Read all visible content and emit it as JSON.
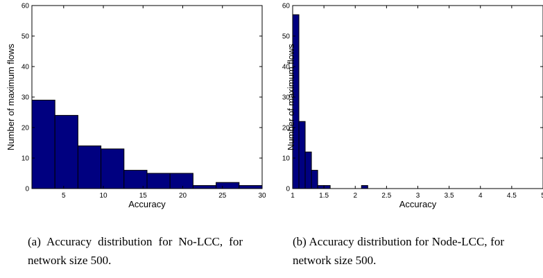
{
  "chart_data": [
    {
      "type": "bar",
      "xlabel": "Accuracy",
      "ylabel": "Number of maximum flows",
      "xlim": [
        1,
        30
      ],
      "ylim": [
        0,
        60
      ],
      "x_ticks": [
        5,
        10,
        15,
        20,
        25,
        30
      ],
      "y_ticks": [
        0,
        10,
        20,
        30,
        40,
        50,
        60
      ],
      "bins": [
        {
          "x0": 1,
          "x1": 3.9,
          "value": 29
        },
        {
          "x0": 3.9,
          "x1": 6.8,
          "value": 24
        },
        {
          "x0": 6.8,
          "x1": 9.7,
          "value": 14
        },
        {
          "x0": 9.7,
          "x1": 12.6,
          "value": 13
        },
        {
          "x0": 12.6,
          "x1": 15.5,
          "value": 6
        },
        {
          "x0": 15.5,
          "x1": 18.4,
          "value": 5
        },
        {
          "x0": 18.4,
          "x1": 21.3,
          "value": 5
        },
        {
          "x0": 21.3,
          "x1": 24.2,
          "value": 1
        },
        {
          "x0": 24.2,
          "x1": 27.1,
          "value": 2
        },
        {
          "x0": 27.1,
          "x1": 30,
          "value": 1
        }
      ],
      "color": "#000080"
    },
    {
      "type": "bar",
      "xlabel": "Accuracy",
      "ylabel": "Number of maximum flows",
      "xlim": [
        1,
        5
      ],
      "ylim": [
        0,
        60
      ],
      "x_ticks": [
        1,
        1.5,
        2,
        2.5,
        3,
        3.5,
        4,
        4.5,
        5
      ],
      "y_ticks": [
        0,
        10,
        20,
        30,
        40,
        50,
        60
      ],
      "bins": [
        {
          "x0": 1.0,
          "x1": 1.1,
          "value": 57
        },
        {
          "x0": 1.1,
          "x1": 1.2,
          "value": 22
        },
        {
          "x0": 1.2,
          "x1": 1.3,
          "value": 12
        },
        {
          "x0": 1.3,
          "x1": 1.4,
          "value": 6
        },
        {
          "x0": 1.4,
          "x1": 1.5,
          "value": 1
        },
        {
          "x0": 1.5,
          "x1": 1.6,
          "value": 1
        },
        {
          "x0": 2.1,
          "x1": 2.2,
          "value": 1
        }
      ],
      "color": "#000080"
    }
  ],
  "captions": {
    "a": "(a) Accuracy distribution for No-LCC, for network size 500.",
    "b": "(b) Accuracy distribution for Node-LCC, for network size 500."
  }
}
